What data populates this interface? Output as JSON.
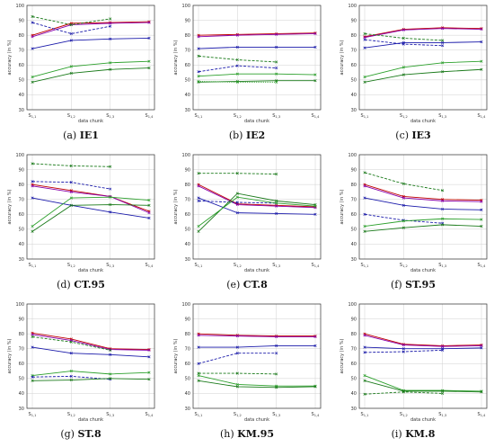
{
  "chart_data": [
    {
      "type": "line",
      "caption_letter": "(a)",
      "caption_name": "IE1",
      "ylabel": "accuracy (in %)",
      "xlabel": "data chunk",
      "categories": [
        "S1,1",
        "S1,2",
        "S1,3",
        "S1,4"
      ],
      "ylim": [
        30,
        100
      ],
      "yticks": [
        30,
        40,
        50,
        60,
        70,
        80,
        90,
        100
      ],
      "grid": true,
      "series": [
        {
          "color": "#c00000",
          "style": "solid",
          "marker": "x",
          "values": [
            80,
            88,
            88.5,
            89
          ]
        },
        {
          "color": "#8800aa",
          "style": "solid",
          "marker": "x",
          "values": [
            79,
            87,
            88,
            88.5
          ]
        },
        {
          "color": "#1a1aaa",
          "style": "solid",
          "marker": "x",
          "values": [
            71,
            76.5,
            77.5,
            78
          ]
        },
        {
          "color": "#1a1aaa",
          "style": "dashed",
          "marker": "x",
          "values": [
            88.5,
            81,
            86,
            null
          ]
        },
        {
          "color": "#1a7a1a",
          "style": "dashed",
          "marker": "x",
          "values": [
            92.5,
            87,
            91,
            null
          ]
        },
        {
          "color": "#1a7a1a",
          "style": "solid",
          "marker": "x",
          "values": [
            48.5,
            54.5,
            57,
            58
          ]
        },
        {
          "color": "#2ca02c",
          "style": "solid",
          "marker": "x",
          "values": [
            52,
            59,
            61.5,
            62.5
          ]
        }
      ]
    },
    {
      "type": "line",
      "caption_letter": "(b)",
      "caption_name": "IE2",
      "ylabel": "accuracy (in %)",
      "xlabel": "data chunk",
      "categories": [
        "S1,1",
        "S1,2",
        "S1,3",
        "S1,4"
      ],
      "ylim": [
        30,
        100
      ],
      "yticks": [
        30,
        40,
        50,
        60,
        70,
        80,
        90,
        100
      ],
      "grid": true,
      "series": [
        {
          "color": "#c00000",
          "style": "solid",
          "marker": "x",
          "values": [
            80,
            80.5,
            81,
            81.5
          ]
        },
        {
          "color": "#8800aa",
          "style": "solid",
          "marker": "x",
          "values": [
            79,
            80,
            80.5,
            81
          ]
        },
        {
          "color": "#1a1aaa",
          "style": "solid",
          "marker": "x",
          "values": [
            71,
            72,
            72,
            72
          ]
        },
        {
          "color": "#1a1aaa",
          "style": "dashed",
          "marker": "x",
          "values": [
            55.5,
            59.5,
            58,
            null
          ]
        },
        {
          "color": "#1a7a1a",
          "style": "dashed",
          "marker": "x",
          "values": [
            66,
            63.5,
            62,
            null
          ]
        },
        {
          "color": "#2ca02c",
          "style": "solid",
          "marker": "x",
          "values": [
            52.5,
            54,
            54,
            53.5
          ]
        },
        {
          "color": "#1a7a1a",
          "style": "solid",
          "marker": "x",
          "values": [
            48.5,
            49,
            49.5,
            49.5
          ]
        },
        {
          "color": "#2ca02c",
          "style": "dotted",
          "marker": "x",
          "values": [
            49,
            48.5,
            48.5,
            null
          ]
        }
      ]
    },
    {
      "type": "line",
      "caption_letter": "(c)",
      "caption_name": "IE3",
      "ylabel": "accuracy (in %)",
      "xlabel": "data chunk",
      "categories": [
        "S1,1",
        "S1,2",
        "S1,3",
        "S1,4"
      ],
      "ylim": [
        30,
        100
      ],
      "yticks": [
        30,
        40,
        50,
        60,
        70,
        80,
        90,
        100
      ],
      "grid": true,
      "series": [
        {
          "color": "#c00000",
          "style": "solid",
          "marker": "x",
          "values": [
            79,
            84,
            85,
            84.5
          ]
        },
        {
          "color": "#8800aa",
          "style": "solid",
          "marker": "x",
          "values": [
            78.5,
            83.5,
            84.5,
            84
          ]
        },
        {
          "color": "#1a1aaa",
          "style": "solid",
          "marker": "x",
          "values": [
            71.5,
            75,
            75,
            75.5
          ]
        },
        {
          "color": "#1a1aaa",
          "style": "dashed",
          "marker": "x",
          "values": [
            77,
            74,
            73,
            null
          ]
        },
        {
          "color": "#1a7a1a",
          "style": "dashed",
          "marker": "x",
          "values": [
            81,
            78,
            76.5,
            null
          ]
        },
        {
          "color": "#2ca02c",
          "style": "solid",
          "marker": "x",
          "values": [
            52,
            58.5,
            61.5,
            62.5
          ]
        },
        {
          "color": "#1a7a1a",
          "style": "solid",
          "marker": "x",
          "values": [
            48.5,
            53.5,
            55.5,
            57
          ]
        }
      ]
    },
    {
      "type": "line",
      "caption_letter": "(d)",
      "caption_name": "CT.95",
      "ylabel": "accuracy (in %)",
      "xlabel": "data chunk",
      "categories": [
        "S1,1",
        "S1,2",
        "S1,3",
        "S1,4"
      ],
      "ylim": [
        30,
        100
      ],
      "yticks": [
        30,
        40,
        50,
        60,
        70,
        80,
        90,
        100
      ],
      "grid": true,
      "series": [
        {
          "color": "#c00000",
          "style": "solid",
          "marker": "x",
          "values": [
            80,
            76,
            72,
            62
          ]
        },
        {
          "color": "#8800aa",
          "style": "solid",
          "marker": "x",
          "values": [
            79,
            75,
            72,
            61
          ]
        },
        {
          "color": "#1a1aaa",
          "style": "solid",
          "marker": "x",
          "values": [
            71,
            66,
            61.5,
            57.5
          ]
        },
        {
          "color": "#1a1aaa",
          "style": "dashed",
          "marker": "x",
          "values": [
            82,
            81.5,
            77,
            null
          ]
        },
        {
          "color": "#1a7a1a",
          "style": "dashed",
          "marker": "x",
          "values": [
            94,
            92.5,
            92,
            null
          ]
        },
        {
          "color": "#1a7a1a",
          "style": "solid",
          "marker": "x",
          "values": [
            48.5,
            66,
            66.5,
            66
          ]
        },
        {
          "color": "#2ca02c",
          "style": "solid",
          "marker": "x",
          "values": [
            52,
            71,
            71.5,
            69.5
          ]
        }
      ]
    },
    {
      "type": "line",
      "caption_letter": "(e)",
      "caption_name": "CT.8",
      "ylabel": "accuracy (in %)",
      "xlabel": "data chunk",
      "categories": [
        "S1,1",
        "S1,2",
        "S1,3",
        "S1,4"
      ],
      "ylim": [
        30,
        100
      ],
      "yticks": [
        30,
        40,
        50,
        60,
        70,
        80,
        90,
        100
      ],
      "grid": true,
      "series": [
        {
          "color": "#c00000",
          "style": "solid",
          "marker": "x",
          "values": [
            80,
            67,
            66,
            65
          ]
        },
        {
          "color": "#8800aa",
          "style": "solid",
          "marker": "x",
          "values": [
            79,
            66.5,
            65.5,
            64.5
          ]
        },
        {
          "color": "#1a1aaa",
          "style": "solid",
          "marker": "x",
          "values": [
            71,
            61,
            60.5,
            60
          ]
        },
        {
          "color": "#1a1aaa",
          "style": "dashed",
          "marker": "x",
          "values": [
            69,
            68,
            67.5,
            null
          ]
        },
        {
          "color": "#1a7a1a",
          "style": "dashed",
          "marker": "x",
          "values": [
            87.5,
            87.5,
            87,
            null
          ]
        },
        {
          "color": "#1a7a1a",
          "style": "solid",
          "marker": "x",
          "values": [
            48.5,
            74,
            69,
            66.5
          ]
        },
        {
          "color": "#2ca02c",
          "style": "solid",
          "marker": "x",
          "values": [
            52,
            71.5,
            67.5,
            65.5
          ]
        }
      ]
    },
    {
      "type": "line",
      "caption_letter": "(f)",
      "caption_name": "ST.95",
      "ylabel": "accuracy (in %)",
      "xlabel": "data chunk",
      "categories": [
        "S1,1",
        "S1,2",
        "S1,3",
        "S1,4"
      ],
      "ylim": [
        30,
        100
      ],
      "yticks": [
        30,
        40,
        50,
        60,
        70,
        80,
        90,
        100
      ],
      "grid": true,
      "series": [
        {
          "color": "#c00000",
          "style": "solid",
          "marker": "x",
          "values": [
            80,
            72,
            70,
            69.5
          ]
        },
        {
          "color": "#8800aa",
          "style": "solid",
          "marker": "x",
          "values": [
            79,
            71,
            69,
            68.5
          ]
        },
        {
          "color": "#1a1aaa",
          "style": "solid",
          "marker": "x",
          "values": [
            71,
            66,
            63.5,
            63
          ]
        },
        {
          "color": "#1a1aaa",
          "style": "dashed",
          "marker": "x",
          "values": [
            60,
            56,
            54,
            null
          ]
        },
        {
          "color": "#1a7a1a",
          "style": "dashed",
          "marker": "x",
          "values": [
            88,
            80.5,
            76,
            null
          ]
        },
        {
          "color": "#2ca02c",
          "style": "solid",
          "marker": "x",
          "values": [
            52,
            55.5,
            57,
            56.5
          ]
        },
        {
          "color": "#1a7a1a",
          "style": "solid",
          "marker": "x",
          "values": [
            48.5,
            51,
            53,
            52
          ]
        }
      ]
    },
    {
      "type": "line",
      "caption_letter": "(g)",
      "caption_name": "ST.8",
      "ylabel": "accuracy (in %)",
      "xlabel": "data chunk",
      "categories": [
        "S1,1",
        "S1,2",
        "S1,3",
        "S1,4"
      ],
      "ylim": [
        30,
        100
      ],
      "yticks": [
        30,
        40,
        50,
        60,
        70,
        80,
        90,
        100
      ],
      "grid": true,
      "series": [
        {
          "color": "#c00000",
          "style": "solid",
          "marker": "x",
          "values": [
            80.5,
            76.5,
            70,
            69.5
          ]
        },
        {
          "color": "#8800aa",
          "style": "solid",
          "marker": "x",
          "values": [
            79.5,
            75.5,
            69.5,
            69
          ]
        },
        {
          "color": "#1a7a1a",
          "style": "dashed",
          "marker": "x",
          "values": [
            78,
            74.5,
            69,
            null
          ]
        },
        {
          "color": "#1a1aaa",
          "style": "solid",
          "marker": "x",
          "values": [
            71,
            67,
            66,
            64.5
          ]
        },
        {
          "color": "#2ca02c",
          "style": "solid",
          "marker": "x",
          "values": [
            52,
            55,
            53,
            54
          ]
        },
        {
          "color": "#1a1aaa",
          "style": "dashed",
          "marker": "x",
          "values": [
            51,
            51.5,
            49.5,
            null
          ]
        },
        {
          "color": "#1a7a1a",
          "style": "solid",
          "marker": "x",
          "values": [
            48.5,
            49,
            50,
            49.5
          ]
        }
      ]
    },
    {
      "type": "line",
      "caption_letter": "(h)",
      "caption_name": "KM.95",
      "ylabel": "accuracy (in %)",
      "xlabel": "data chunk",
      "categories": [
        "S1,1",
        "S1,2",
        "S1,3",
        "S1,4"
      ],
      "ylim": [
        30,
        100
      ],
      "yticks": [
        30,
        40,
        50,
        60,
        70,
        80,
        90,
        100
      ],
      "grid": true,
      "series": [
        {
          "color": "#c00000",
          "style": "solid",
          "marker": "x",
          "values": [
            80,
            79,
            78.5,
            78.5
          ]
        },
        {
          "color": "#8800aa",
          "style": "solid",
          "marker": "x",
          "values": [
            79,
            78.5,
            78,
            78
          ]
        },
        {
          "color": "#1a1aaa",
          "style": "solid",
          "marker": "x",
          "values": [
            71,
            71,
            72,
            72
          ]
        },
        {
          "color": "#1a1aaa",
          "style": "dashed",
          "marker": "x",
          "values": [
            60,
            67,
            67,
            null
          ]
        },
        {
          "color": "#1a7a1a",
          "style": "dashed",
          "marker": "x",
          "values": [
            53.5,
            53.5,
            53,
            null
          ]
        },
        {
          "color": "#2ca02c",
          "style": "solid",
          "marker": "x",
          "values": [
            52,
            46,
            45,
            45
          ]
        },
        {
          "color": "#1a7a1a",
          "style": "solid",
          "marker": "x",
          "values": [
            48.5,
            44.5,
            44,
            44.5
          ]
        }
      ]
    },
    {
      "type": "line",
      "caption_letter": "(i)",
      "caption_name": "KM.8",
      "ylabel": "accuracy (in %)",
      "xlabel": "data chunk",
      "categories": [
        "S1,1",
        "S1,2",
        "S1,3",
        "S1,4"
      ],
      "ylim": [
        30,
        100
      ],
      "yticks": [
        30,
        40,
        50,
        60,
        70,
        80,
        90,
        100
      ],
      "grid": true,
      "series": [
        {
          "color": "#c00000",
          "style": "solid",
          "marker": "x",
          "values": [
            80,
            73,
            72,
            72.5
          ]
        },
        {
          "color": "#8800aa",
          "style": "solid",
          "marker": "x",
          "values": [
            79,
            72.5,
            71.5,
            72
          ]
        },
        {
          "color": "#1a1aaa",
          "style": "solid",
          "marker": "x",
          "values": [
            71,
            70,
            70,
            70.5
          ]
        },
        {
          "color": "#1a1aaa",
          "style": "dashed",
          "marker": "x",
          "values": [
            67.5,
            68,
            69,
            null
          ]
        },
        {
          "color": "#2ca02c",
          "style": "solid",
          "marker": "x",
          "values": [
            52,
            42,
            42,
            41.5
          ]
        },
        {
          "color": "#1a7a1a",
          "style": "solid",
          "marker": "x",
          "values": [
            48.5,
            41.5,
            41.5,
            41
          ]
        },
        {
          "color": "#1a7a1a",
          "style": "dashed",
          "marker": "x",
          "values": [
            39.5,
            41,
            40,
            null
          ]
        }
      ]
    }
  ]
}
